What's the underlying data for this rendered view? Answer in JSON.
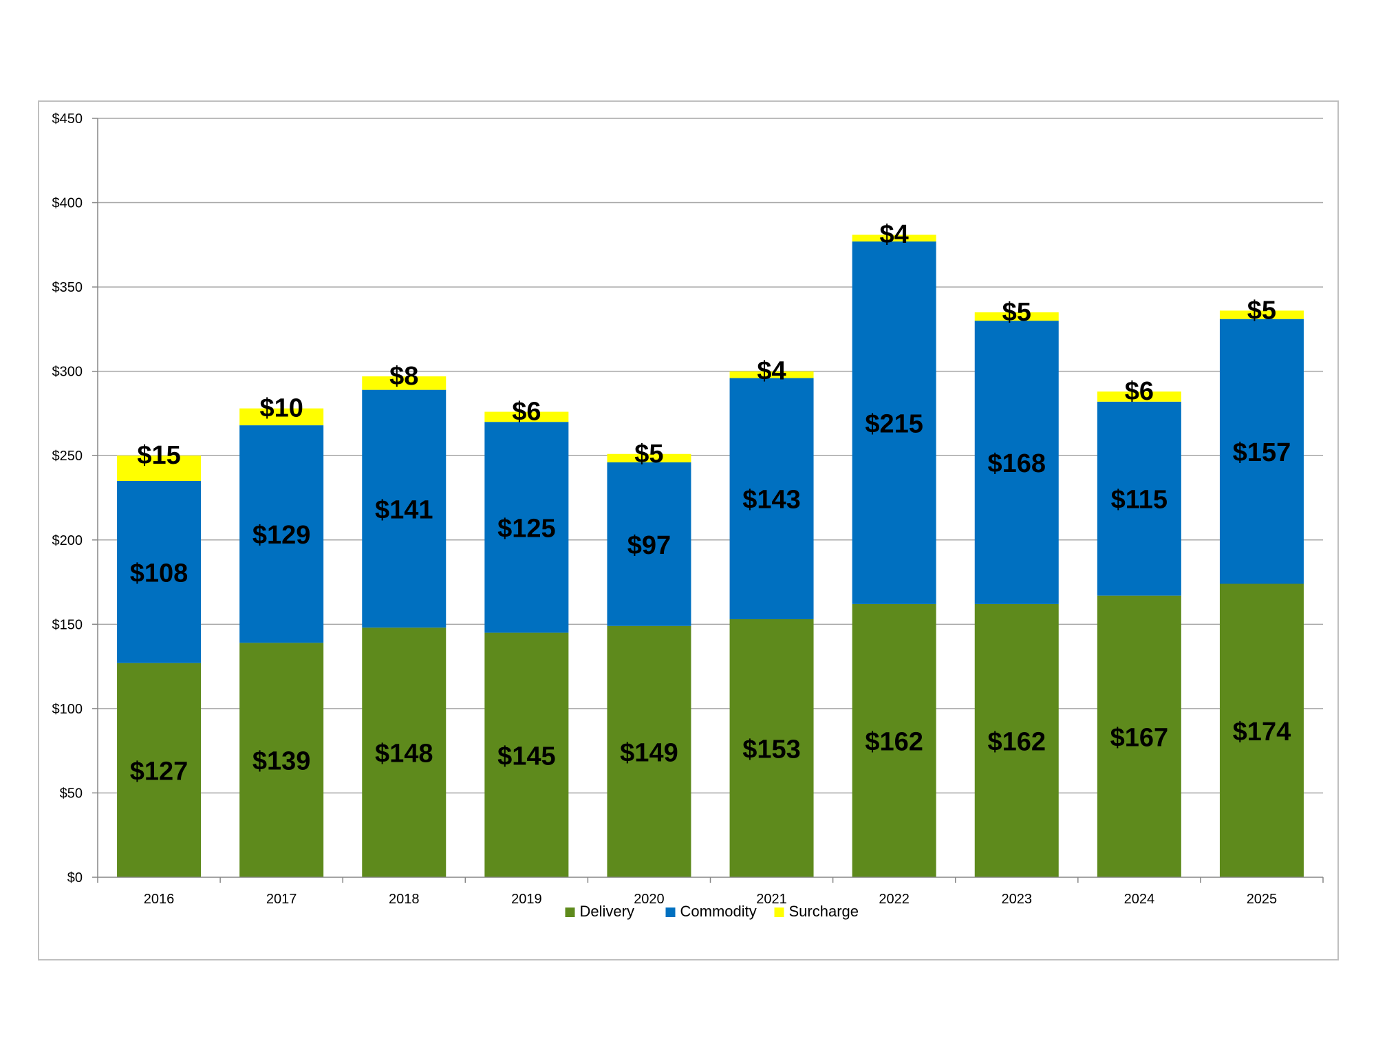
{
  "chart_data": {
    "type": "bar",
    "stacked": true,
    "categories": [
      "2016",
      "2017",
      "2018",
      "2019",
      "2020",
      "2021",
      "2022",
      "2023",
      "2024",
      "2025"
    ],
    "series": [
      {
        "name": "Delivery",
        "color": "#5e8a1c",
        "values": [
          127,
          139,
          148,
          145,
          149,
          153,
          162,
          162,
          167,
          174
        ],
        "labels": [
          "$127",
          "$139",
          "$148",
          "$145",
          "$149",
          "$153",
          "$162",
          "$162",
          "$167",
          "$174"
        ]
      },
      {
        "name": "Commodity",
        "color": "#0070c0",
        "values": [
          108,
          129,
          141,
          125,
          97,
          143,
          215,
          168,
          115,
          157
        ],
        "labels": [
          "$108",
          "$129",
          "$141",
          "$125",
          "$97",
          "$143",
          "$215",
          "$168",
          "$115",
          "$157"
        ]
      },
      {
        "name": "Surcharge",
        "color": "#ffff00",
        "values": [
          15,
          10,
          8,
          6,
          5,
          4,
          4,
          5,
          6,
          5
        ],
        "labels": [
          "$15",
          "$10",
          "$8",
          "$6",
          "$5",
          "$4",
          "$4",
          "$5",
          "$6",
          "$5"
        ]
      }
    ],
    "yticks": [
      0,
      50,
      100,
      150,
      200,
      250,
      300,
      350,
      400,
      450
    ],
    "ytick_labels": [
      "$0",
      "$50",
      "$100",
      "$150",
      "$200",
      "$250",
      "$300",
      "$350",
      "$400",
      "$450"
    ],
    "ylim": [
      0,
      450
    ],
    "title": "",
    "xlabel": "",
    "ylabel": "",
    "grid": true,
    "legend": "bottom-center",
    "gridline_color": "#a6a6a6"
  }
}
